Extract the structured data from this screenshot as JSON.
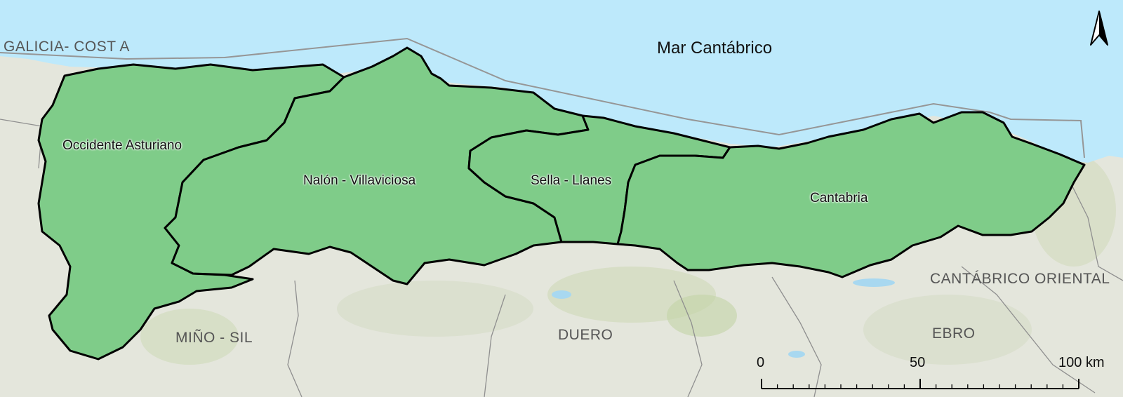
{
  "map": {
    "sea_label": "Mar Cantábrico",
    "basins": [
      {
        "id": "occidente",
        "label": "Occidente Asturiano"
      },
      {
        "id": "nalon",
        "label": "Nalón - Villaviciosa"
      },
      {
        "id": "sella",
        "label": "Sella - Llanes"
      },
      {
        "id": "cantabria",
        "label": "Cantabria"
      }
    ],
    "neighbours": [
      {
        "id": "galicia",
        "label": "GALICIA- COST A"
      },
      {
        "id": "cantabrico-oriental",
        "label": "CANTÁBRICO ORIENTAL"
      },
      {
        "id": "mino-sil",
        "label": "MIÑO - SIL"
      },
      {
        "id": "duero",
        "label": "DUERO"
      },
      {
        "id": "ebro",
        "label": "EBRO"
      }
    ],
    "scale": {
      "ticks": [
        "0",
        "50",
        "100 km"
      ]
    },
    "colors": {
      "sea": "#bde9fb",
      "land": "#e4e6dc",
      "basin_fill": "#7fcc89",
      "basin_border": "#000000"
    }
  }
}
